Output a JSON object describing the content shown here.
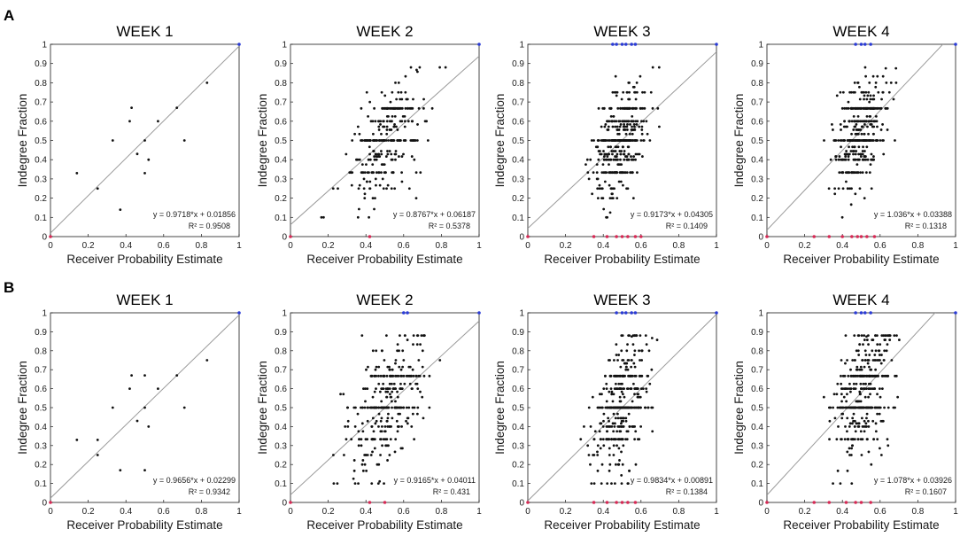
{
  "figure": {
    "row_labels": [
      "A",
      "B"
    ],
    "colors": {
      "points": "#111111",
      "fit_line": "#9a9a9a",
      "margin_top": "#2a3bd6",
      "margin_bottom": "#d62a55"
    }
  },
  "chart_data": [
    {
      "type": "scatter",
      "panel": "A",
      "title": "WEEK 1",
      "xlabel": "Receiver Probability Estimate",
      "ylabel": "Indegree Fraction",
      "xlim": [
        0,
        1
      ],
      "ylim": [
        0,
        1
      ],
      "xticks": [
        "0",
        "0.2",
        "0.4",
        "0.6",
        "0.8",
        "1"
      ],
      "yticks": [
        "0",
        "0.1",
        "0.2",
        "0.3",
        "0.4",
        "0.5",
        "0.6",
        "0.7",
        "0.8",
        "0.9",
        "1"
      ],
      "fit": {
        "slope": 0.9718,
        "intercept": 0.01856
      },
      "equation": "y = 0.9718*x + 0.01856",
      "r2": "R² = 0.9508",
      "points": [
        [
          0.14,
          0.33
        ],
        [
          0.25,
          0.25
        ],
        [
          0.33,
          0.5
        ],
        [
          0.37,
          0.14
        ],
        [
          0.42,
          0.6
        ],
        [
          0.43,
          0.67
        ],
        [
          0.5,
          0.5
        ],
        [
          0.46,
          0.43
        ],
        [
          0.5,
          0.33
        ],
        [
          0.52,
          0.4
        ],
        [
          0.57,
          0.6
        ],
        [
          0.67,
          0.67
        ],
        [
          0.71,
          0.5
        ],
        [
          0.83,
          0.8
        ]
      ],
      "point_count": 14,
      "margin_top_points": [
        1.0
      ],
      "margin_bottom_points": [
        0.0
      ]
    },
    {
      "type": "scatter",
      "panel": "A",
      "title": "WEEK 2",
      "xlabel": "Receiver Probability Estimate",
      "ylabel": "Indegree Fraction",
      "xlim": [
        0,
        1
      ],
      "ylim": [
        0,
        1
      ],
      "xticks": [
        "0",
        "0.2",
        "0.4",
        "0.6",
        "0.8",
        "1"
      ],
      "yticks": [
        "0",
        "0.1",
        "0.2",
        "0.3",
        "0.4",
        "0.5",
        "0.6",
        "0.7",
        "0.8",
        "0.9",
        "1"
      ],
      "fit": {
        "slope": 0.8767,
        "intercept": 0.06187
      },
      "equation": "y = 0.8767*x + 0.06187",
      "r2": "R² = 0.5378",
      "point_count": 300,
      "cluster": {
        "x_mean": 0.5,
        "x_sd": 0.1,
        "y_spread": 0.13
      },
      "margin_top_points": [
        1.0
      ],
      "margin_bottom_points": [
        0.0,
        0.42
      ]
    },
    {
      "type": "scatter",
      "panel": "A",
      "title": "WEEK 3",
      "xlabel": "Receiver Probability Estimate",
      "ylabel": "Indegree Fraction",
      "xlim": [
        0,
        1
      ],
      "ylim": [
        0,
        1
      ],
      "xticks": [
        "0",
        "0.2",
        "0.4",
        "0.6",
        "0.8",
        "1"
      ],
      "yticks": [
        "0",
        "0.1",
        "0.2",
        "0.3",
        "0.4",
        "0.5",
        "0.6",
        "0.7",
        "0.8",
        "0.9",
        "1"
      ],
      "fit": {
        "slope": 0.9173,
        "intercept": 0.04305
      },
      "equation": "y = 0.9173*x + 0.04305",
      "r2": "R² = 0.1409",
      "point_count": 400,
      "cluster": {
        "x_mean": 0.49,
        "x_sd": 0.07,
        "y_spread": 0.12
      },
      "margin_top_points": [
        0.45,
        0.47,
        0.5,
        0.52,
        0.55,
        0.57,
        1.0
      ],
      "margin_bottom_points": [
        0.0,
        0.35,
        0.42,
        0.47,
        0.5,
        0.53,
        0.57,
        0.6
      ]
    },
    {
      "type": "scatter",
      "panel": "A",
      "title": "WEEK 4",
      "xlabel": "Receiver Probability Estimate",
      "ylabel": "Indegree Fraction",
      "xlim": [
        0,
        1
      ],
      "ylim": [
        0,
        1
      ],
      "xticks": [
        "0",
        "0.2",
        "0.4",
        "0.6",
        "0.8",
        "1"
      ],
      "yticks": [
        "0",
        "0.1",
        "0.2",
        "0.3",
        "0.4",
        "0.5",
        "0.6",
        "0.7",
        "0.8",
        "0.9",
        "1"
      ],
      "fit": {
        "slope": 1.036,
        "intercept": 0.03388
      },
      "equation": "y = 1.036*x + 0.03388",
      "r2": "R² = 0.1318",
      "point_count": 380,
      "cluster": {
        "x_mean": 0.5,
        "x_sd": 0.07,
        "y_spread": 0.13
      },
      "margin_top_points": [
        0.47,
        0.5,
        0.52,
        0.55,
        1.0
      ],
      "margin_bottom_points": [
        0.0,
        0.25,
        0.33,
        0.4,
        0.45,
        0.48,
        0.5,
        0.53,
        0.57
      ]
    },
    {
      "type": "scatter",
      "panel": "B",
      "title": "WEEK 1",
      "xlabel": "Receiver Probability Estimate",
      "ylabel": "Indegree Fraction",
      "xlim": [
        0,
        1
      ],
      "ylim": [
        0,
        1
      ],
      "xticks": [
        "0",
        "0.2",
        "0.4",
        "0.6",
        "0.8",
        "1"
      ],
      "yticks": [
        "0",
        "0.1",
        "0.2",
        "0.3",
        "0.4",
        "0.5",
        "0.6",
        "0.7",
        "0.8",
        "0.9",
        "1"
      ],
      "fit": {
        "slope": 0.9656,
        "intercept": 0.02299
      },
      "equation": "y = 0.9656*x + 0.02299",
      "r2": "R² = 0.9342",
      "points": [
        [
          0.14,
          0.33
        ],
        [
          0.25,
          0.33
        ],
        [
          0.25,
          0.25
        ],
        [
          0.33,
          0.5
        ],
        [
          0.37,
          0.17
        ],
        [
          0.42,
          0.6
        ],
        [
          0.43,
          0.67
        ],
        [
          0.5,
          0.67
        ],
        [
          0.46,
          0.43
        ],
        [
          0.5,
          0.5
        ],
        [
          0.52,
          0.4
        ],
        [
          0.5,
          0.17
        ],
        [
          0.57,
          0.6
        ],
        [
          0.67,
          0.67
        ],
        [
          0.71,
          0.5
        ],
        [
          0.83,
          0.75
        ]
      ],
      "point_count": 16,
      "margin_top_points": [
        1.0
      ],
      "margin_bottom_points": [
        0.0
      ]
    },
    {
      "type": "scatter",
      "panel": "B",
      "title": "WEEK 2",
      "xlabel": "Receiver Probability Estimate",
      "ylabel": "Indegree Fraction",
      "xlim": [
        0,
        1
      ],
      "ylim": [
        0,
        1
      ],
      "xticks": [
        "0",
        "0.2",
        "0.4",
        "0.6",
        "0.8",
        "1"
      ],
      "yticks": [
        "0",
        "0.1",
        "0.2",
        "0.3",
        "0.4",
        "0.5",
        "0.6",
        "0.7",
        "0.8",
        "0.9",
        "1"
      ],
      "fit": {
        "slope": 0.9165,
        "intercept": 0.04011
      },
      "equation": "y = 0.9165*x + 0.04011",
      "r2": "R² = 0.431",
      "point_count": 320,
      "cluster": {
        "x_mean": 0.52,
        "x_sd": 0.1,
        "y_spread": 0.15
      },
      "margin_top_points": [
        0.6,
        0.62,
        1.0
      ],
      "margin_bottom_points": [
        0.0,
        0.42,
        0.5
      ]
    },
    {
      "type": "scatter",
      "panel": "B",
      "title": "WEEK 3",
      "xlabel": "Receiver Probability Estimate",
      "ylabel": "Indegree Fraction",
      "xlim": [
        0,
        1
      ],
      "ylim": [
        0,
        1
      ],
      "xticks": [
        "0",
        "0.2",
        "0.4",
        "0.6",
        "0.8",
        "1"
      ],
      "yticks": [
        "0",
        "0.1",
        "0.2",
        "0.3",
        "0.4",
        "0.5",
        "0.6",
        "0.7",
        "0.8",
        "0.9",
        "1"
      ],
      "fit": {
        "slope": 0.9834,
        "intercept": 0.00891
      },
      "equation": "y = 0.9834*x + 0.00891",
      "r2": "R² = 0.1384",
      "point_count": 400,
      "cluster": {
        "x_mean": 0.5,
        "x_sd": 0.07,
        "y_spread": 0.15
      },
      "margin_top_points": [
        0.47,
        0.5,
        0.52,
        0.55,
        0.57,
        1.0
      ],
      "margin_bottom_points": [
        0.0,
        0.35,
        0.42,
        0.47,
        0.5,
        0.53,
        0.57
      ]
    },
    {
      "type": "scatter",
      "panel": "B",
      "title": "WEEK 4",
      "xlabel": "Receiver Probability Estimate",
      "ylabel": "Indegree Fraction",
      "xlim": [
        0,
        1
      ],
      "ylim": [
        0,
        1
      ],
      "xticks": [
        "0",
        "0.2",
        "0.4",
        "0.6",
        "0.8",
        "1"
      ],
      "yticks": [
        "0",
        "0.1",
        "0.2",
        "0.3",
        "0.4",
        "0.5",
        "0.6",
        "0.7",
        "0.8",
        "0.9",
        "1"
      ],
      "fit": {
        "slope": 1.078,
        "intercept": 0.03926
      },
      "equation": "y = 1.078*x + 0.03926",
      "r2": "R² = 0.1607",
      "point_count": 380,
      "cluster": {
        "x_mean": 0.5,
        "x_sd": 0.07,
        "y_spread": 0.15
      },
      "margin_top_points": [
        0.47,
        0.5,
        0.52,
        0.55,
        1.0
      ],
      "margin_bottom_points": [
        0.0,
        0.25,
        0.33,
        0.42,
        0.47,
        0.5,
        0.55
      ]
    }
  ]
}
